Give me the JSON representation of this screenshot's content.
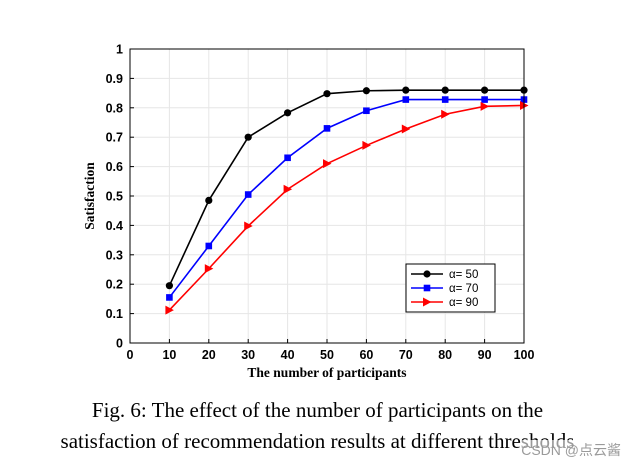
{
  "chart_data": {
    "type": "line",
    "xlabel": "The number of participants",
    "ylabel": "Satisfaction",
    "x": [
      10,
      20,
      30,
      40,
      50,
      60,
      70,
      80,
      90,
      100
    ],
    "xlim": [
      0,
      100
    ],
    "ylim": [
      0,
      1
    ],
    "xticks": [
      0,
      10,
      20,
      30,
      40,
      50,
      60,
      70,
      80,
      90,
      100
    ],
    "yticks": [
      "0",
      "0.1",
      "0.2",
      "0.3",
      "0.4",
      "0.5",
      "0.6",
      "0.7",
      "0.8",
      "0.9",
      "1"
    ],
    "grid": true,
    "legend_position": "bottom-right",
    "series": [
      {
        "name": "α= 50",
        "color": "#000000",
        "marker": "circle",
        "values": [
          0.195,
          0.485,
          0.7,
          0.783,
          0.848,
          0.858,
          0.86,
          0.86,
          0.86,
          0.86
        ]
      },
      {
        "name": "α= 70",
        "color": "#0000ff",
        "marker": "square",
        "values": [
          0.155,
          0.33,
          0.505,
          0.63,
          0.73,
          0.79,
          0.828,
          0.828,
          0.828,
          0.828
        ]
      },
      {
        "name": "α= 90",
        "color": "#ff0000",
        "marker": "triangle-right",
        "values": [
          0.112,
          0.253,
          0.398,
          0.523,
          0.61,
          0.672,
          0.728,
          0.778,
          0.805,
          0.808
        ]
      }
    ]
  },
  "caption": {
    "line1": "Fig. 6: The effect of the number of participants on the",
    "line2": "satisfaction of recommendation results at different thresholds"
  },
  "watermark": "CSDN @点云酱"
}
